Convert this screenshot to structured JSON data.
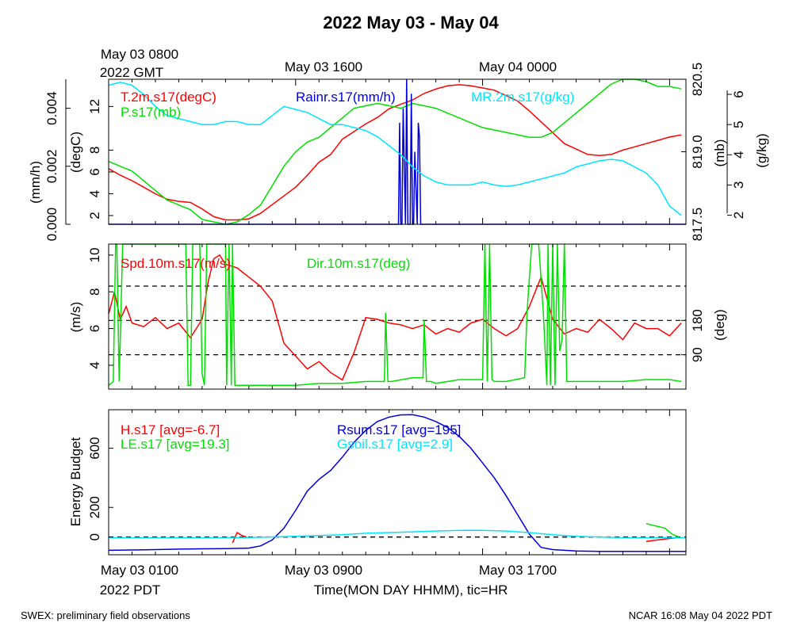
{
  "title": "2022 May 03 - May 04",
  "colors": {
    "red": "#ff0000",
    "green": "#00e000",
    "blue": "#0000dd",
    "cyan": "#00e5ff",
    "black": "#000000"
  },
  "top_axis": {
    "labels": [
      "May 03 0800",
      "May 03 1600",
      "May 04 0000"
    ],
    "sub_label": "2022 GMT"
  },
  "bottom_axis": {
    "labels": [
      "May 03 0100",
      "May 03 0900",
      "May 03 1700"
    ],
    "sub_label": "2022 PDT",
    "title": "Time(MON DAY HHMM), tic=HR"
  },
  "footer": {
    "left": "SWEX: preliminary field observations",
    "right": "NCAR 16:08 May 04 2022 PDT"
  },
  "chart_data": [
    {
      "type": "line",
      "panel": "met",
      "x_unit": "hours since May 03 0100 PDT",
      "xlim": [
        0,
        24.7
      ],
      "axes": {
        "rain": {
          "label": "(mm/h)",
          "ylim": [
            0,
            0.005
          ],
          "ticks": [
            "0.000",
            "0.002",
            "0.004"
          ],
          "tick_values": [
            0,
            0.002,
            0.004
          ]
        },
        "temp": {
          "label": "(degC)",
          "ylim": [
            1.2,
            14.5
          ],
          "ticks": [
            "2",
            "4",
            "6",
            "8",
            "12"
          ],
          "tick_values": [
            2,
            4,
            6,
            8,
            12
          ]
        },
        "pres": {
          "label": "(mb)",
          "ylim": [
            817.5,
            820.5
          ],
          "ticks": [
            "817.5",
            "819.0",
            "819.0",
            "820.5"
          ],
          "tick_values": [
            817.5,
            819.0,
            819.0,
            820.5
          ]
        },
        "mr": {
          "label": "(g/kg)",
          "ylim": [
            1.7,
            6.5
          ],
          "ticks": [
            "2",
            "3",
            "4",
            "5",
            "6"
          ],
          "tick_values": [
            2,
            3,
            4,
            5,
            6
          ]
        }
      },
      "legend": [
        "T.2m.s17(degC)",
        "P.s17(mb)",
        "Rainr.s17(mm/h)",
        "MR.2m.s17(g/kg)"
      ],
      "series": [
        {
          "name": "T.2m.s17(degC)",
          "color": "red",
          "axis": "temp",
          "x": [
            0,
            0.5,
            1,
            1.5,
            2,
            2.5,
            3,
            3.5,
            4,
            4.5,
            5,
            5.5,
            6,
            6.5,
            7,
            7.5,
            8,
            8.5,
            9,
            9.5,
            10,
            10.5,
            11,
            11.5,
            12,
            12.5,
            13,
            13.5,
            14,
            14.5,
            15,
            15.5,
            16,
            16.5,
            17,
            17.5,
            18,
            18.5,
            19,
            19.5,
            20,
            20.5,
            21,
            21.5,
            22,
            22.5,
            23,
            23.5,
            24,
            24.5
          ],
          "y": [
            6.3,
            5.7,
            5.2,
            4.6,
            4.0,
            3.5,
            3.3,
            3.2,
            2.6,
            1.9,
            1.6,
            1.6,
            1.7,
            2.2,
            3.0,
            3.8,
            4.6,
            5.7,
            6.9,
            7.6,
            9.0,
            9.7,
            10.4,
            11.0,
            11.8,
            12.2,
            12.6,
            13.2,
            13.6,
            13.9,
            14.0,
            13.9,
            13.7,
            13.5,
            13.0,
            12.5,
            11.6,
            10.6,
            9.6,
            8.6,
            8.1,
            7.6,
            7.5,
            7.6,
            8.0,
            8.3,
            8.6,
            8.9,
            9.2,
            9.4
          ]
        },
        {
          "name": "P.s17(mb)",
          "color": "green",
          "axis": "pres",
          "x": [
            0,
            0.5,
            1,
            1.5,
            2,
            2.5,
            3,
            3.5,
            4,
            4.5,
            5,
            5.5,
            6,
            6.5,
            7,
            7.5,
            8,
            8.5,
            9,
            9.5,
            10,
            10.5,
            11,
            11.5,
            12,
            12.5,
            13,
            13.5,
            14,
            14.5,
            15,
            15.5,
            16,
            16.5,
            17,
            17.5,
            18,
            18.5,
            19,
            19.5,
            20,
            20.5,
            21,
            21.5,
            22,
            22.5,
            23,
            23.5,
            24,
            24.5
          ],
          "y": [
            818.8,
            818.7,
            818.6,
            818.4,
            818.2,
            818.0,
            817.9,
            817.8,
            817.6,
            817.55,
            817.5,
            817.55,
            817.7,
            817.9,
            818.3,
            818.7,
            819.0,
            819.2,
            819.3,
            819.5,
            819.7,
            819.9,
            819.95,
            820.0,
            819.95,
            819.9,
            820.0,
            819.95,
            819.9,
            819.8,
            819.7,
            819.6,
            819.5,
            819.45,
            819.4,
            819.35,
            819.3,
            819.3,
            819.4,
            819.6,
            819.8,
            820.0,
            820.2,
            820.4,
            820.55,
            820.5,
            820.45,
            820.35,
            820.35,
            820.3
          ]
        },
        {
          "name": "Rainr.s17(mm/h)",
          "color": "blue",
          "axis": "rain",
          "x": [
            0,
            12.4,
            12.45,
            12.5,
            12.55,
            12.6,
            12.7,
            12.75,
            12.8,
            12.9,
            12.95,
            13.0,
            13.05,
            13.1,
            13.2,
            13.25,
            13.3,
            13.35,
            13.4,
            13.45,
            24.7
          ],
          "y": [
            0,
            0,
            0.0035,
            0,
            0,
            0.004,
            0,
            0.005,
            0,
            0,
            0.0045,
            0,
            0,
            0.0025,
            0,
            0.0035,
            0.003,
            0,
            0,
            0,
            0
          ]
        },
        {
          "name": "MR.2m.s17(g/kg)",
          "color": "cyan",
          "axis": "mr",
          "x": [
            0,
            0.5,
            1,
            1.5,
            2,
            2.5,
            3,
            3.5,
            4,
            4.5,
            5,
            5.5,
            6,
            6.5,
            7,
            7.5,
            8,
            8.5,
            9,
            9.5,
            10,
            10.5,
            11,
            11.5,
            12,
            12.5,
            13,
            13.5,
            14,
            14.5,
            15,
            15.5,
            16,
            16.5,
            17,
            17.5,
            18,
            18.5,
            19,
            19.5,
            20,
            20.5,
            21,
            21.5,
            22,
            22.5,
            23,
            23.5,
            24,
            24.5
          ],
          "y": [
            6.3,
            6.4,
            6.3,
            6.0,
            5.6,
            5.3,
            5.2,
            5.1,
            5.0,
            5.0,
            5.1,
            5.1,
            5.0,
            5.0,
            5.3,
            5.6,
            5.5,
            5.4,
            5.2,
            5.0,
            5.0,
            4.9,
            4.8,
            4.6,
            4.3,
            4.0,
            3.6,
            3.3,
            3.1,
            3.0,
            3.0,
            3.0,
            3.1,
            3.0,
            2.95,
            3.0,
            3.1,
            3.2,
            3.3,
            3.4,
            3.6,
            3.7,
            3.8,
            3.85,
            3.8,
            3.6,
            3.4,
            3.0,
            2.3,
            2.0
          ]
        }
      ]
    },
    {
      "type": "line",
      "panel": "wind",
      "x_unit": "hours since May 03 0100 PDT",
      "xlim": [
        0,
        24.7
      ],
      "axes": {
        "spd": {
          "label": "(m/s)",
          "ylim": [
            2.7,
            10.6
          ],
          "ticks": [
            "4",
            "6",
            "8",
            "10"
          ],
          "tick_values": [
            4,
            6,
            8,
            10
          ]
        },
        "dir": {
          "label": "(deg)",
          "ylim": [
            0,
            380
          ],
          "ticks": [
            "90",
            "180"
          ],
          "tick_values": [
            90,
            180
          ]
        }
      },
      "reference_lines_deg": [
        90,
        180,
        270
      ],
      "legend": [
        "Spd.10m.s17(m/s)",
        "Dir.10m.s17(deg)"
      ],
      "series": [
        {
          "name": "Spd.10m.s17(m/s)",
          "color": "red",
          "axis": "spd",
          "x": [
            0,
            0.25,
            0.5,
            0.75,
            1,
            1.5,
            2,
            2.5,
            3,
            3.5,
            4,
            4.25,
            4.5,
            4.75,
            5,
            5.5,
            6,
            6.5,
            7,
            7.5,
            8,
            8.5,
            9,
            9.5,
            10,
            10.5,
            11,
            11.5,
            12,
            12.5,
            13,
            13.5,
            14,
            14.5,
            15,
            15.5,
            16,
            16.5,
            17,
            17.5,
            18,
            18.5,
            19,
            19.5,
            20,
            20.5,
            21,
            21.5,
            22,
            22.5,
            23,
            23.5,
            24,
            24.5
          ],
          "y": [
            6.8,
            8.0,
            6.5,
            7.2,
            6.3,
            6.1,
            6.6,
            6.0,
            6.3,
            5.5,
            6.5,
            8.5,
            9.8,
            10.0,
            9.5,
            9.3,
            8.8,
            8.3,
            7.5,
            5.2,
            4.5,
            3.8,
            4.2,
            3.6,
            3.2,
            4.7,
            6.6,
            6.5,
            6.3,
            6.2,
            6.0,
            6.2,
            5.7,
            6.0,
            5.8,
            6.3,
            6.5,
            6.0,
            5.6,
            6.0,
            7.2,
            8.8,
            6.5,
            5.7,
            6.0,
            5.8,
            6.5,
            6.0,
            5.4,
            6.3,
            6.0,
            6.0,
            5.6,
            6.3
          ]
        },
        {
          "name": "Dir.10m.s17(deg)",
          "color": "green",
          "axis": "dir",
          "x": [
            0,
            0.2,
            0.3,
            0.35,
            0.45,
            0.6,
            0.7,
            1,
            2,
            3.3,
            3.4,
            3.5,
            3.6,
            3.9,
            4.0,
            4.1,
            4.2,
            4.8,
            5.0,
            5.05,
            5.15,
            5.25,
            5.3,
            5.4,
            5.5,
            6,
            7,
            8,
            9,
            10,
            11,
            11.8,
            11.85,
            11.95,
            12.05,
            12.1,
            13,
            13.45,
            13.5,
            13.6,
            13.7,
            13.8,
            14,
            15,
            16,
            16.1,
            16.2,
            16.3,
            16.4,
            16.5,
            17,
            17.8,
            17.9,
            18.1,
            18.3,
            18.4,
            18.6,
            18.75,
            18.8,
            18.9,
            19.0,
            19.1,
            19.2,
            19.3,
            19.4,
            19.5,
            19.6,
            20,
            21,
            22,
            23,
            24,
            24.5
          ],
          "y": [
            10,
            20,
            380,
            380,
            20,
            380,
            380,
            380,
            380,
            380,
            10,
            10,
            380,
            380,
            40,
            10,
            380,
            380,
            380,
            10,
            380,
            10,
            380,
            10,
            10,
            10,
            10,
            10,
            15,
            15,
            20,
            20,
            200,
            20,
            20,
            20,
            30,
            30,
            180,
            20,
            20,
            20,
            15,
            25,
            25,
            380,
            20,
            380,
            25,
            20,
            20,
            30,
            200,
            380,
            380,
            380,
            200,
            10,
            380,
            10,
            380,
            10,
            380,
            100,
            130,
            380,
            20,
            20,
            20,
            20,
            25,
            25,
            20
          ]
        }
      ]
    },
    {
      "type": "line",
      "panel": "energy",
      "x_unit": "hours since May 03 0100 PDT",
      "xlim": [
        0,
        24.7
      ],
      "ylabel": "Energy Budget",
      "ylim": [
        -120,
        860
      ],
      "yticks": [
        0,
        200,
        600
      ],
      "reference_line": 0,
      "legend": [
        "H.s17 [avg=-6.7]",
        "LE.s17 [avg=19.3]",
        "Rsum.s17 [avg=195]",
        "Gsoil.s17 [avg=2.9]"
      ],
      "series": [
        {
          "name": "H.s17 [avg=-6.7]",
          "color": "red",
          "axis": "y",
          "segments": [
            {
              "x": [
                5.3,
                5.5,
                5.7,
                5.9
              ],
              "y": [
                -40,
                30,
                10,
                0
              ]
            },
            {
              "x": [
                23.0,
                23.5,
                24.0,
                24.3
              ],
              "y": [
                -30,
                -20,
                -10,
                -5
              ]
            }
          ]
        },
        {
          "name": "LE.s17 [avg=19.3]",
          "color": "green",
          "axis": "y",
          "segments": [
            {
              "x": [
                23.0,
                23.4,
                23.8,
                24.1,
                24.4
              ],
              "y": [
                90,
                75,
                60,
                20,
                0
              ]
            }
          ]
        },
        {
          "name": "Rsum.s17 [avg=195]",
          "color": "blue",
          "axis": "y",
          "x": [
            0,
            1,
            2,
            3,
            4,
            5,
            6,
            6.5,
            7,
            7.5,
            8,
            8.5,
            9,
            9.5,
            10,
            10.5,
            11,
            11.5,
            12,
            12.5,
            13,
            13.5,
            14,
            14.5,
            15,
            15.5,
            16,
            16.5,
            17,
            17.5,
            18,
            18.5,
            19,
            20,
            21,
            22,
            23,
            24,
            24.7
          ],
          "y": [
            -90,
            -88,
            -85,
            -82,
            -80,
            -78,
            -75,
            -60,
            -20,
            60,
            180,
            310,
            390,
            450,
            540,
            640,
            720,
            780,
            810,
            825,
            826,
            810,
            780,
            740,
            680,
            600,
            500,
            400,
            280,
            150,
            20,
            -70,
            -85,
            -95,
            -97,
            -97,
            -97,
            -97,
            -97
          ]
        },
        {
          "name": "Gsoil.s17 [avg=2.9]",
          "color": "cyan",
          "axis": "y",
          "x": [
            0,
            2,
            4,
            6,
            7,
            8,
            9,
            10,
            11,
            12,
            13,
            14,
            15,
            16,
            17,
            18,
            19,
            20,
            21,
            22,
            23,
            24,
            24.7
          ],
          "y": [
            -5,
            -5,
            -5,
            -4,
            0,
            5,
            10,
            15,
            25,
            30,
            35,
            40,
            45,
            45,
            40,
            30,
            15,
            5,
            0,
            -5,
            -5,
            -5,
            -5
          ]
        }
      ]
    }
  ]
}
